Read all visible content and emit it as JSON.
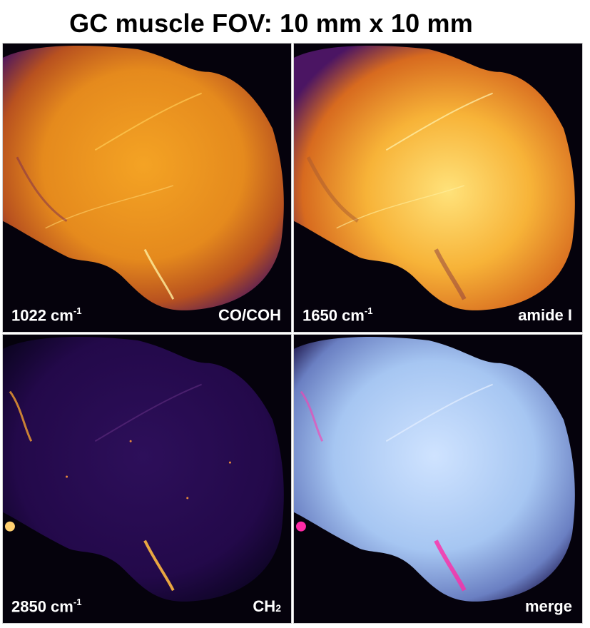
{
  "title": "GC muscle FOV: 10 mm x 10 mm",
  "panels": [
    {
      "wavenumber": "1022 cm",
      "exp": "-1",
      "component": "CO/COH",
      "colormap": "inferno-orange"
    },
    {
      "wavenumber": "1650 cm",
      "exp": "-1",
      "component": "amide I",
      "colormap": "inferno-yellow"
    },
    {
      "wavenumber": "2850 cm",
      "exp": "-1",
      "component": "CH",
      "component_sub": "2",
      "colormap": "inferno-dark"
    },
    {
      "wavenumber": "",
      "exp": "",
      "component": "merge",
      "colormap": "blue-magenta-merge"
    }
  ]
}
